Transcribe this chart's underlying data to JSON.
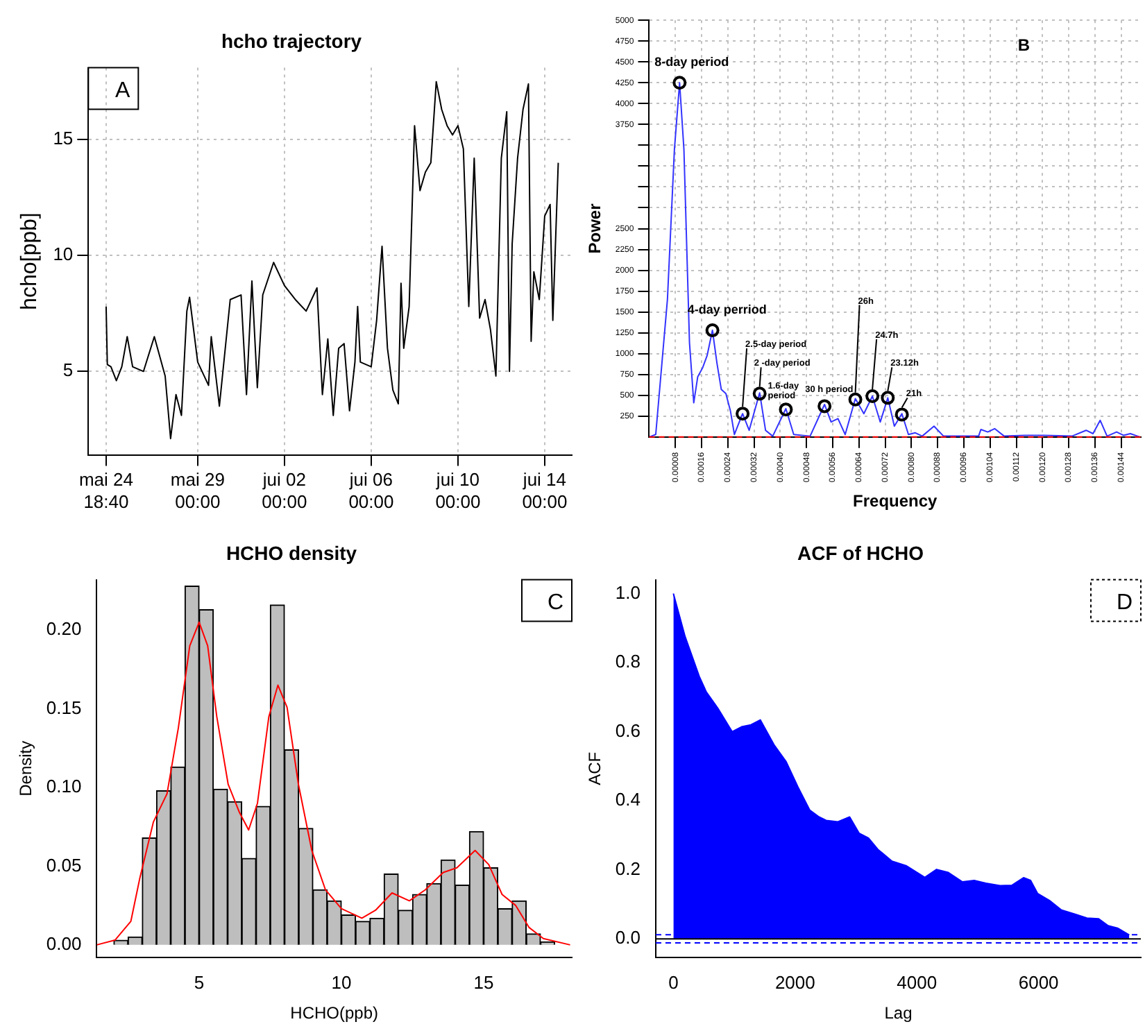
{
  "chart_data": [
    {
      "type": "line",
      "title": "hcho trajectory",
      "ylabel": "hcho[ppb]",
      "annotations": [
        "A"
      ],
      "grid": true,
      "xlim": [
        "--05-23T23:00",
        "--06-15T06:00"
      ],
      "xticks": [
        {
          "value": "--05-24T18:40",
          "label": "mai 24\n18:40"
        },
        {
          "value": "--05-29T00:00",
          "label": "mai 29\n00:00"
        },
        {
          "value": "--06-02T00:00",
          "label": "jui 02\n00:00"
        },
        {
          "value": "--06-06T00:00",
          "label": "jui 06\n00:00"
        },
        {
          "value": "--06-10T00:00",
          "label": "jui 10\n00:00"
        },
        {
          "value": "--06-14T00:00",
          "label": "jui 14\n00:00"
        }
      ],
      "ylim": [
        1.4,
        18.1
      ],
      "yticks": [
        5,
        10,
        15
      ],
      "series": [
        {
          "color": "#000000",
          "x": [
            "--05-24T18:40",
            "--05-24T20:00",
            "--05-25T00:00",
            "--05-25T06:00",
            "--05-25T12:00",
            "--05-25T18:00",
            "--05-26T00:00",
            "--05-26T12:00",
            "--05-27T00:00",
            "--05-27T12:00",
            "--05-27T18:00",
            "--05-28T00:00",
            "--05-28T06:00",
            "--05-28T12:00",
            "--05-28T15:00",
            "--05-29T00:00",
            "--05-29T12:00",
            "--05-29T15:00",
            "--05-30T00:00",
            "--05-30T12:00",
            "--05-31T00:00",
            "--05-31T06:00",
            "--05-31T12:00",
            "--05-31T18:00",
            "--06-01T00:00",
            "--06-01T12:00",
            "--06-02T00:00",
            "--06-02T12:00",
            "--06-03T00:00",
            "--06-03T12:00",
            "--06-03T18:00",
            "--06-04T00:00",
            "--06-04T06:00",
            "--06-04T12:00",
            "--06-04T18:00",
            "--06-05T00:00",
            "--06-05T06:00",
            "--06-05T09:00",
            "--06-05T12:00",
            "--06-06T00:00",
            "--06-06T06:00",
            "--06-06T12:00",
            "--06-06T18:00",
            "--06-07T00:00",
            "--06-07T06:00",
            "--06-07T09:00",
            "--06-07T12:00",
            "--06-07T18:00",
            "--06-08T00:00",
            "--06-08T06:00",
            "--06-08T12:00",
            "--06-08T18:00",
            "--06-09T00:00",
            "--06-09T06:00",
            "--06-09T12:00",
            "--06-09T18:00",
            "--06-10T00:00",
            "--06-10T06:00",
            "--06-10T12:00",
            "--06-10T18:00",
            "--06-11T00:00",
            "--06-11T06:00",
            "--06-11T12:00",
            "--06-11T18:00",
            "--06-12T00:00",
            "--06-12T06:00",
            "--06-12T09:00",
            "--06-12T12:00",
            "--06-12T18:00",
            "--06-13T00:00",
            "--06-13T06:00",
            "--06-13T09:00",
            "--06-13T12:00",
            "--06-13T18:00",
            "--06-14T00:00",
            "--06-14T06:00",
            "--06-14T09:00",
            "--06-14T15:00"
          ],
          "values": [
            7.8,
            5.3,
            5.2,
            4.6,
            5.2,
            6.5,
            5.2,
            5.0,
            6.5,
            4.8,
            2.1,
            4.0,
            3.1,
            7.6,
            8.2,
            5.4,
            4.4,
            6.5,
            3.5,
            8.1,
            8.3,
            4.0,
            8.9,
            4.3,
            8.3,
            9.7,
            8.7,
            8.1,
            7.6,
            8.6,
            4.0,
            6.4,
            3.1,
            6.0,
            6.2,
            3.3,
            5.4,
            7.8,
            5.4,
            5.2,
            7.2,
            10.4,
            6.0,
            4.2,
            3.6,
            8.8,
            6.0,
            7.8,
            15.6,
            12.8,
            13.6,
            14.0,
            17.5,
            16.3,
            15.6,
            15.2,
            15.6,
            14.6,
            7.8,
            14.2,
            7.3,
            8.1,
            6.8,
            4.8,
            14.2,
            16.2,
            5.0,
            10.5,
            14.2,
            16.3,
            17.4,
            6.3,
            9.3,
            8.1,
            11.7,
            12.2,
            7.2,
            14.0
          ]
        }
      ]
    },
    {
      "type": "line",
      "xlabel": "Frequency",
      "ylabel": "Power",
      "grid": true,
      "annotations": [
        "B",
        {
          "text": "8-day period",
          "x": 9.28e-05,
          "y": 4250
        },
        {
          "text": "4-day perriod",
          "x": 0.000193,
          "y": 1280
        },
        {
          "text": "2.5-day period",
          "x": 0.000285,
          "y": 280
        },
        {
          "text": "2 -day period",
          "x": 0.000337,
          "y": 520
        },
        {
          "text": "1.6-day period",
          "x": 0.000417,
          "y": 330
        },
        {
          "text": "30 h period",
          "x": 0.000535,
          "y": 370
        },
        {
          "text": "26h",
          "x": 0.000629,
          "y": 450
        },
        {
          "text": "24.7h",
          "x": 0.000681,
          "y": 490
        },
        {
          "text": "23.12h",
          "x": 0.000728,
          "y": 470
        },
        {
          "text": "21h",
          "x": 0.000771,
          "y": 270
        }
      ],
      "xlim": [
        0,
        0.0015
      ],
      "xticks": [
        {
          "value": 8e-05,
          "label": "0.00008"
        },
        {
          "value": 0.00016,
          "label": "0.00016"
        },
        {
          "value": 0.00024,
          "label": "0.00024"
        },
        {
          "value": 0.00032,
          "label": "0.00032"
        },
        {
          "value": 0.0004,
          "label": "0.00040"
        },
        {
          "value": 0.00048,
          "label": "0.00048"
        },
        {
          "value": 0.00056,
          "label": "0.00056"
        },
        {
          "value": 0.00064,
          "label": "0.00064"
        },
        {
          "value": 0.00072,
          "label": "0.00072"
        },
        {
          "value": 0.0008,
          "label": "0.00080"
        },
        {
          "value": 0.00088,
          "label": "0.00088"
        },
        {
          "value": 0.00096,
          "label": "0.00096"
        },
        {
          "value": 0.00104,
          "label": "0.00104"
        },
        {
          "value": 0.00112,
          "label": "0.00112"
        },
        {
          "value": 0.0012,
          "label": "0.00120"
        },
        {
          "value": 0.00128,
          "label": "0.00128"
        },
        {
          "value": 0.00136,
          "label": "0.00136"
        },
        {
          "value": 0.00144,
          "label": "0.00144"
        }
      ],
      "ylim": [
        0,
        5000
      ],
      "yticks": [
        250,
        500,
        750,
        1000,
        1250,
        1500,
        1750,
        2000,
        2250,
        2500,
        {
          "value": 2750,
          "label": null
        },
        {
          "value": 3000,
          "label": null
        },
        {
          "value": 3250,
          "label": null
        },
        {
          "value": 3500,
          "label": null
        },
        3750,
        4000,
        4250,
        4500,
        4750,
        5000
      ],
      "ref_lines": [
        {
          "axis": "y",
          "value": 0,
          "color": "#ff0000",
          "line_style": "dashed"
        }
      ],
      "series": [
        {
          "color": "#3333ff",
          "x": [
            0,
            2e-05,
            5.57e-05,
            7.7e-05,
            9.28e-05,
            0.000106,
            0.000123,
            0.000136,
            0.000148,
            0.000163,
            0.000177,
            0.000193,
            0.000207,
            0.00022,
            0.000234,
            0.000248,
            0.00026,
            0.000285,
            0.000305,
            0.000337,
            0.000355,
            0.000377,
            0.000417,
            0.000441,
            0.000491,
            0.000535,
            0.000555,
            0.000576,
            0.000598,
            0.000629,
            0.000655,
            0.000681,
            0.000705,
            0.000728,
            0.000748,
            0.000771,
            0.000791,
            0.000812,
            0.000833,
            0.000869,
            0.000898,
            0.001005,
            0.001012,
            0.001033,
            0.001054,
            0.001083,
            0.001147,
            0.001204,
            0.00129,
            0.001333,
            0.001354,
            0.001376,
            0.001397,
            0.001426,
            0.001447,
            0.001468,
            0.001497
          ],
          "values": [
            0,
            30,
            1650,
            3450,
            4250,
            3450,
            1130,
            410,
            720,
            830,
            980,
            1280,
            880,
            570,
            520,
            310,
            30,
            280,
            80,
            530,
            80,
            10,
            340,
            30,
            10,
            390,
            180,
            220,
            30,
            460,
            280,
            490,
            180,
            470,
            130,
            280,
            30,
            50,
            10,
            130,
            10,
            10,
            90,
            60,
            100,
            10,
            20,
            20,
            10,
            80,
            40,
            200,
            10,
            60,
            20,
            40,
            0
          ]
        }
      ]
    },
    {
      "type": "histogram",
      "title": "HCHO density",
      "xlabel": "HCHO(ppb)",
      "ylabel": "Density",
      "annotations": [
        "C"
      ],
      "xlim": [
        1.4,
        18.1
      ],
      "xticks": [
        5,
        10,
        15
      ],
      "ylim": [
        -0.008,
        0.232
      ],
      "yticks": [
        {
          "value": 0,
          "label": "0.00"
        },
        {
          "value": 0.05,
          "label": "0.05"
        },
        {
          "value": 0.1,
          "label": "0.10"
        },
        {
          "value": 0.15,
          "label": "0.15"
        },
        {
          "value": 0.2,
          "label": "0.20"
        }
      ],
      "series": [
        {
          "color": "#bebebe",
          "bins": [
            2,
            2.5,
            3,
            3.5,
            4,
            4.5,
            5,
            5.5,
            6,
            6.5,
            7,
            7.5,
            8,
            8.5,
            9,
            9.5,
            10,
            10.5,
            11,
            11.5,
            12,
            12.5,
            13,
            13.5,
            14,
            14.5,
            15,
            15.5,
            16,
            16.5,
            17,
            17.5
          ],
          "values": [
            0.003,
            0.005,
            0.068,
            0.098,
            0.113,
            0.228,
            0.213,
            0.099,
            0.091,
            0.055,
            0.088,
            0.216,
            0.124,
            0.074,
            0.035,
            0.028,
            0.019,
            0.015,
            0.017,
            0.045,
            0.022,
            0.032,
            0.039,
            0.054,
            0.038,
            0.072,
            0.049,
            0.023,
            0.028,
            0.007,
            0.002
          ]
        },
        {
          "type": "line",
          "color": "#ff0000",
          "x": [
            1.4,
            2.04,
            2.6,
            2.91,
            3.39,
            3.87,
            4.27,
            4.67,
            5.0,
            5.3,
            5.62,
            6.02,
            6.42,
            6.74,
            7.05,
            7.45,
            7.77,
            8.09,
            8.49,
            8.96,
            9.44,
            10.0,
            10.72,
            11.2,
            11.78,
            12.39,
            12.95,
            13.58,
            14.06,
            14.7,
            15.18,
            15.65,
            16.13,
            16.6,
            17.1,
            18.04
          ],
          "values": [
            0,
            0.003,
            0.015,
            0.042,
            0.078,
            0.096,
            0.138,
            0.19,
            0.205,
            0.19,
            0.145,
            0.102,
            0.084,
            0.073,
            0.09,
            0.145,
            0.165,
            0.151,
            0.102,
            0.06,
            0.035,
            0.023,
            0.017,
            0.022,
            0.033,
            0.028,
            0.035,
            0.046,
            0.049,
            0.06,
            0.051,
            0.032,
            0.025,
            0.011,
            0.004,
            0
          ]
        }
      ]
    },
    {
      "type": "area",
      "title": "ACF of HCHO",
      "xlabel": "Lag",
      "ylabel": "ACF",
      "annotations": [
        "D"
      ],
      "xlim": [
        -290,
        7680
      ],
      "xticks": [
        0,
        2000,
        4000,
        6000
      ],
      "ylim": [
        -0.054,
        1.04
      ],
      "yticks": [
        {
          "value": 0,
          "label": "0.0"
        },
        {
          "value": 0.2,
          "label": "0.2"
        },
        {
          "value": 0.4,
          "label": "0.4"
        },
        {
          "value": 0.6,
          "label": "0.6"
        },
        {
          "value": 0.8,
          "label": "0.8"
        },
        {
          "value": 1,
          "label": "1.0"
        }
      ],
      "ref_lines": [
        {
          "axis": "y",
          "value": 0,
          "color": "#000000"
        },
        {
          "axis": "y",
          "value": 0.012,
          "color": "#0000ff",
          "line_style": "dashed"
        },
        {
          "axis": "y",
          "value": -0.012,
          "color": "#0000ff",
          "line_style": "dashed"
        }
      ],
      "series": [
        {
          "color": "#0000ff",
          "x": [
            0,
            193,
            425,
            541,
            734,
            965,
            1120,
            1274,
            1429,
            1660,
            1853,
            2046,
            2239,
            2394,
            2510,
            2703,
            2896,
            3050,
            3205,
            3359,
            3591,
            3822,
            4131,
            4324,
            4517,
            4749,
            4942,
            5135,
            5367,
            5560,
            5753,
            5869,
            5985,
            6178,
            6371,
            6602,
            6795,
            6988,
            7143,
            7297,
            7490
          ],
          "values": [
            1.0,
            0.875,
            0.76,
            0.715,
            0.667,
            0.6,
            0.614,
            0.62,
            0.634,
            0.56,
            0.513,
            0.44,
            0.373,
            0.353,
            0.343,
            0.339,
            0.353,
            0.306,
            0.292,
            0.259,
            0.225,
            0.212,
            0.178,
            0.201,
            0.192,
            0.165,
            0.169,
            0.161,
            0.154,
            0.155,
            0.177,
            0.169,
            0.131,
            0.111,
            0.084,
            0.071,
            0.06,
            0.058,
            0.038,
            0.031,
            0.011
          ]
        }
      ]
    }
  ]
}
